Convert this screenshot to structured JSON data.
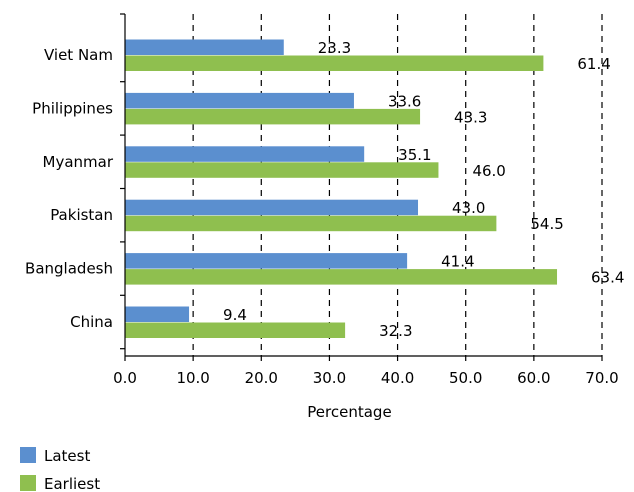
{
  "chart_data": {
    "type": "bar",
    "orientation": "horizontal",
    "categories": [
      "Viet Nam",
      "Philippines",
      "Myanmar",
      "Pakistan",
      "Bangladesh",
      "China"
    ],
    "series": [
      {
        "name": "Latest",
        "color": "#5b8fcf",
        "values": [
          23.3,
          33.6,
          35.1,
          43.0,
          41.4,
          9.4
        ],
        "labels": [
          "23.3",
          "33.6",
          "35.1",
          "43.0",
          "41.4",
          "9.4"
        ]
      },
      {
        "name": "Earliest",
        "color": "#8fbf4f",
        "values": [
          61.4,
          43.3,
          46.0,
          54.5,
          63.4,
          32.3
        ],
        "labels": [
          "61.4",
          "43.3",
          "46.0",
          "54.5",
          "63.4",
          "32.3"
        ]
      }
    ],
    "xlabel": "Percentage",
    "ylabel": "",
    "xlim": [
      0,
      70
    ],
    "xticks": [
      0,
      10,
      20,
      30,
      40,
      50,
      60,
      70
    ],
    "xtick_labels": [
      "0.0",
      "10.0",
      "20.0",
      "30.0",
      "40.0",
      "50.0",
      "60.0",
      "70.0"
    ],
    "grid": "vertical-dashed",
    "legend_position": "bottom-left"
  }
}
